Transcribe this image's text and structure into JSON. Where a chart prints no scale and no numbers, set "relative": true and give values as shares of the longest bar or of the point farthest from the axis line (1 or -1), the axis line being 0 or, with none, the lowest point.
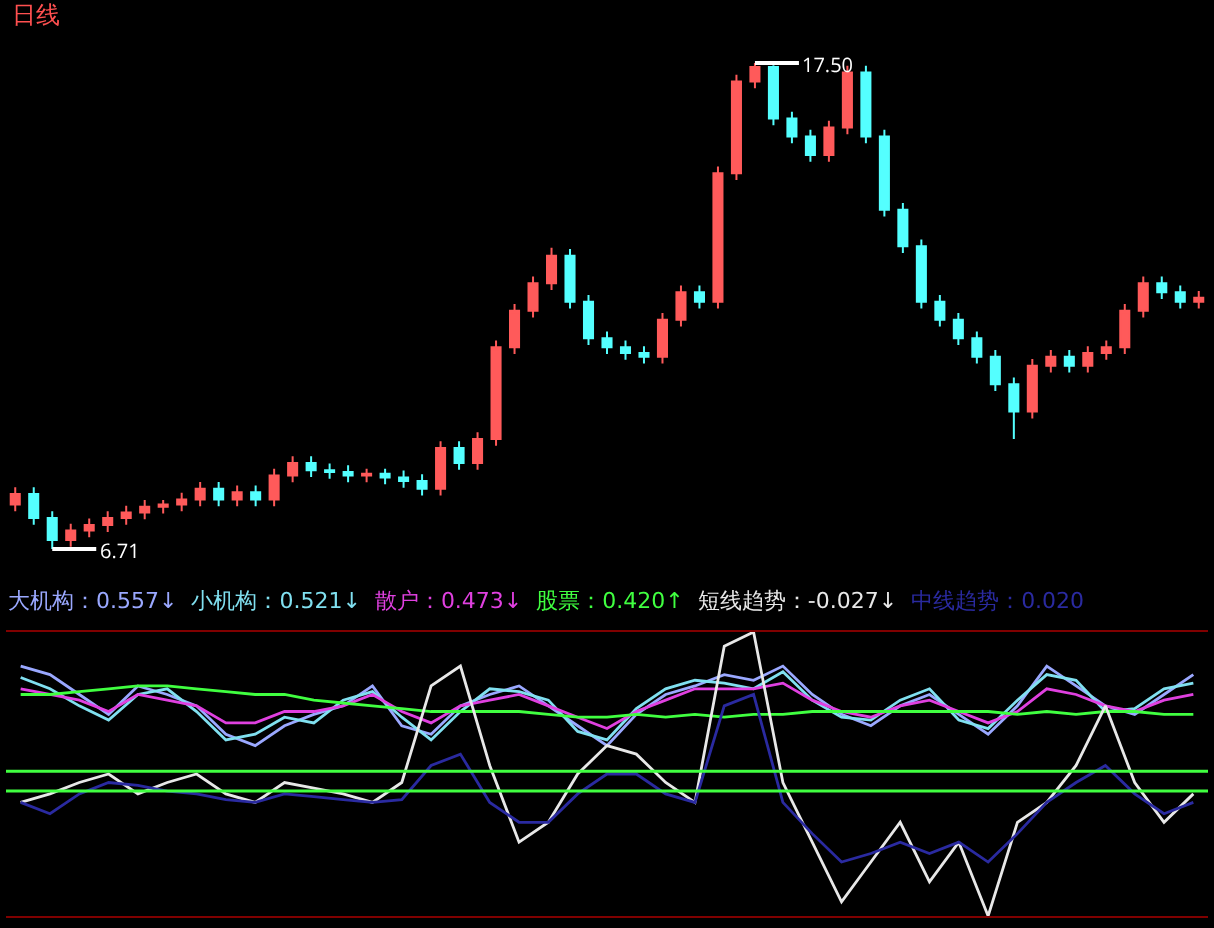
{
  "chart_data": [
    {
      "type": "candlestick",
      "title": "日线",
      "tick_labels": false,
      "categories": [
        null,
        null,
        null,
        null,
        null,
        null,
        null,
        null,
        null,
        null,
        null,
        null,
        null,
        null,
        null,
        null,
        null,
        null,
        null,
        null,
        null,
        null,
        null,
        null,
        null,
        null,
        null,
        null,
        null,
        null,
        null,
        null,
        null,
        null,
        null,
        null,
        null,
        null,
        null,
        null,
        null,
        null,
        null,
        null,
        null,
        null,
        null,
        null,
        null,
        null,
        null,
        null,
        null,
        null,
        null,
        null,
        null,
        null,
        null,
        null,
        null,
        null,
        null,
        null,
        null
      ],
      "ohlc": [
        [
          7.7,
          8.08,
          7.55,
          7.93
        ],
        [
          7.93,
          8.08,
          7.25,
          7.4
        ],
        [
          7.4,
          7.55,
          6.71,
          6.91
        ],
        [
          6.91,
          7.27,
          6.76,
          7.12
        ],
        [
          7.12,
          7.39,
          6.97,
          7.24
        ],
        [
          7.24,
          7.55,
          7.09,
          7.4
        ],
        [
          7.4,
          7.67,
          7.25,
          7.52
        ],
        [
          7.52,
          7.8,
          7.37,
          7.65
        ],
        [
          7.65,
          7.8,
          7.5,
          7.7
        ],
        [
          7.7,
          7.96,
          7.55,
          7.81
        ],
        [
          7.81,
          8.2,
          7.66,
          8.05
        ],
        [
          8.05,
          8.2,
          7.66,
          7.81
        ],
        [
          7.81,
          8.12,
          7.66,
          7.97
        ],
        [
          7.97,
          8.12,
          7.66,
          7.81
        ],
        [
          7.81,
          8.49,
          7.66,
          8.34
        ],
        [
          8.34,
          8.77,
          8.19,
          8.62
        ],
        [
          8.62,
          8.77,
          8.31,
          8.46
        ],
        [
          8.46,
          8.61,
          8.27,
          8.42
        ],
        [
          8.42,
          8.57,
          8.19,
          8.34
        ],
        [
          8.34,
          8.49,
          8.19,
          8.38
        ],
        [
          8.38,
          8.49,
          8.15,
          8.3
        ],
        [
          8.3,
          8.45,
          8.07,
          8.22
        ],
        [
          8.22,
          8.37,
          7.9,
          8.05
        ],
        [
          8.05,
          9.1,
          7.9,
          8.95
        ],
        [
          8.95,
          9.1,
          8.47,
          8.62
        ],
        [
          8.62,
          9.3,
          8.47,
          9.15
        ],
        [
          9.15,
          11.34,
          9.0,
          11.19
        ],
        [
          11.19,
          12.15,
          11.04,
          12.0
        ],
        [
          12.0,
          12.76,
          11.85,
          12.61
        ],
        [
          12.61,
          13.4,
          12.46,
          13.22
        ],
        [
          13.22,
          13.37,
          12.05,
          12.2
        ],
        [
          12.2,
          12.35,
          11.24,
          11.39
        ],
        [
          11.39,
          11.54,
          11.04,
          11.19
        ],
        [
          11.19,
          11.34,
          10.91,
          11.06
        ],
        [
          11.06,
          11.21,
          10.83,
          10.98
        ],
        [
          10.98,
          11.95,
          10.83,
          11.8
        ],
        [
          11.8,
          12.56,
          11.65,
          12.41
        ],
        [
          12.41,
          12.56,
          12.05,
          12.2
        ],
        [
          12.2,
          15.2,
          12.05,
          15.05
        ],
        [
          15.05,
          17.24,
          14.9,
          17.09
        ],
        [
          17.09,
          17.5,
          16.94,
          17.41
        ],
        [
          17.41,
          17.45,
          16.12,
          16.27
        ],
        [
          16.27,
          16.42,
          15.72,
          15.87
        ],
        [
          15.87,
          16.02,
          15.31,
          15.46
        ],
        [
          15.46,
          16.22,
          15.31,
          16.07
        ],
        [
          16.07,
          17.44,
          15.92,
          17.29
        ],
        [
          17.29,
          17.44,
          15.72,
          15.87
        ],
        [
          15.87,
          16.02,
          14.09,
          14.24
        ],
        [
          14.24,
          14.39,
          13.28,
          13.43
        ],
        [
          13.43,
          13.58,
          12.05,
          12.2
        ],
        [
          12.2,
          12.35,
          11.65,
          11.8
        ],
        [
          11.8,
          11.95,
          11.24,
          11.39
        ],
        [
          11.39,
          11.54,
          10.83,
          10.98
        ],
        [
          10.98,
          11.13,
          10.22,
          10.37
        ],
        [
          10.37,
          10.52,
          9.15,
          9.76
        ],
        [
          9.76,
          10.93,
          9.61,
          10.78
        ],
        [
          10.78,
          11.13,
          10.63,
          10.98
        ],
        [
          10.98,
          11.13,
          10.63,
          10.78
        ],
        [
          10.78,
          11.21,
          10.63,
          11.06
        ],
        [
          11.06,
          11.34,
          10.91,
          11.19
        ],
        [
          11.19,
          12.15,
          11.04,
          12.0
        ],
        [
          12.0,
          12.76,
          11.85,
          12.61
        ],
        [
          12.61,
          12.76,
          12.26,
          12.41
        ],
        [
          12.41,
          12.56,
          12.05,
          12.2
        ],
        [
          12.2,
          12.44,
          12.05,
          12.29
        ]
      ],
      "annotations": [
        "17.50",
        "6.71"
      ]
    },
    {
      "type": "line",
      "relative": true,
      "tick_labels": false,
      "legend": "top",
      "categories": [
        null,
        null,
        null,
        null,
        null,
        null,
        null,
        null,
        null,
        null,
        null,
        null,
        null,
        null,
        null,
        null,
        null,
        null,
        null,
        null,
        null,
        null,
        null,
        null,
        null,
        null,
        null,
        null,
        null,
        null,
        null,
        null,
        null,
        null,
        null,
        null,
        null,
        null,
        null,
        null,
        null
      ],
      "series": [
        {
          "name": "大机构：0.557↓",
          "color": "#9aa8ff",
          "values": [
            0.88,
            0.85,
            0.78,
            0.71,
            0.81,
            0.78,
            0.74,
            0.64,
            0.6,
            0.67,
            0.71,
            0.74,
            0.81,
            0.67,
            0.64,
            0.74,
            0.78,
            0.81,
            0.74,
            0.67,
            0.6,
            0.71,
            0.78,
            0.81,
            0.85,
            0.83,
            0.88,
            0.78,
            0.71,
            0.67,
            0.74,
            0.78,
            0.71,
            0.64,
            0.74,
            0.88,
            0.81,
            0.74,
            0.71,
            0.78,
            0.85
          ]
        },
        {
          "name": "小机构：0.521↓",
          "color": "#80e0f0",
          "values": [
            0.84,
            0.8,
            0.74,
            0.69,
            0.78,
            0.8,
            0.72,
            0.62,
            0.64,
            0.7,
            0.68,
            0.76,
            0.79,
            0.7,
            0.62,
            0.72,
            0.8,
            0.79,
            0.76,
            0.65,
            0.62,
            0.73,
            0.8,
            0.83,
            0.82,
            0.8,
            0.86,
            0.76,
            0.7,
            0.69,
            0.76,
            0.8,
            0.69,
            0.66,
            0.76,
            0.85,
            0.83,
            0.72,
            0.73,
            0.8,
            0.82
          ]
        },
        {
          "name": "散户：0.473↓",
          "color": "#e040e0",
          "values": [
            0.8,
            0.78,
            0.76,
            0.72,
            0.78,
            0.76,
            0.74,
            0.68,
            0.68,
            0.72,
            0.72,
            0.74,
            0.78,
            0.72,
            0.68,
            0.74,
            0.76,
            0.78,
            0.74,
            0.7,
            0.66,
            0.72,
            0.76,
            0.8,
            0.8,
            0.8,
            0.82,
            0.76,
            0.72,
            0.7,
            0.74,
            0.76,
            0.72,
            0.68,
            0.72,
            0.8,
            0.78,
            0.74,
            0.72,
            0.76,
            0.78
          ]
        },
        {
          "name": "股票：0.420↑",
          "color": "#40ff40",
          "values": [
            0.78,
            0.78,
            0.79,
            0.8,
            0.81,
            0.81,
            0.8,
            0.79,
            0.78,
            0.78,
            0.76,
            0.75,
            0.74,
            0.73,
            0.72,
            0.72,
            0.72,
            0.72,
            0.71,
            0.7,
            0.7,
            0.71,
            0.7,
            0.71,
            0.7,
            0.71,
            0.71,
            0.72,
            0.72,
            0.72,
            0.72,
            0.72,
            0.72,
            0.72,
            0.71,
            0.72,
            0.71,
            0.72,
            0.72,
            0.71,
            0.71
          ]
        },
        {
          "name": "短线趋势：-0.027↓",
          "color": "#e8e8e8",
          "values": [
            0.4,
            0.43,
            0.47,
            0.5,
            0.43,
            0.47,
            0.5,
            0.43,
            0.4,
            0.47,
            0.45,
            0.43,
            0.4,
            0.47,
            0.81,
            0.88,
            0.53,
            0.26,
            0.33,
            0.5,
            0.6,
            0.57,
            0.47,
            0.4,
            0.95,
            1,
            0.47,
            0.26,
            0.05,
            0.19,
            0.33,
            0.12,
            0.26,
            0,
            0.33,
            0.4,
            0.53,
            0.74,
            0.47,
            0.33,
            0.43
          ]
        },
        {
          "name": "中线趋势：0.020",
          "color": "#2a2aa0",
          "values": [
            0.4,
            0.36,
            0.43,
            0.47,
            0.46,
            0.44,
            0.43,
            0.41,
            0.4,
            0.43,
            0.42,
            0.41,
            0.4,
            0.41,
            0.53,
            0.57,
            0.4,
            0.33,
            0.33,
            0.43,
            0.5,
            0.5,
            0.43,
            0.4,
            0.74,
            0.78,
            0.4,
            0.29,
            0.19,
            0.22,
            0.26,
            0.22,
            0.26,
            0.19,
            0.29,
            0.4,
            0.47,
            0.53,
            0.43,
            0.36,
            0.4
          ]
        }
      ],
      "ref_lines": [
        {
          "axis": "y",
          "value": 0.51,
          "color": "#40ff40"
        },
        {
          "axis": "y",
          "value": 0.44,
          "color": "#40ff40"
        }
      ]
    }
  ]
}
